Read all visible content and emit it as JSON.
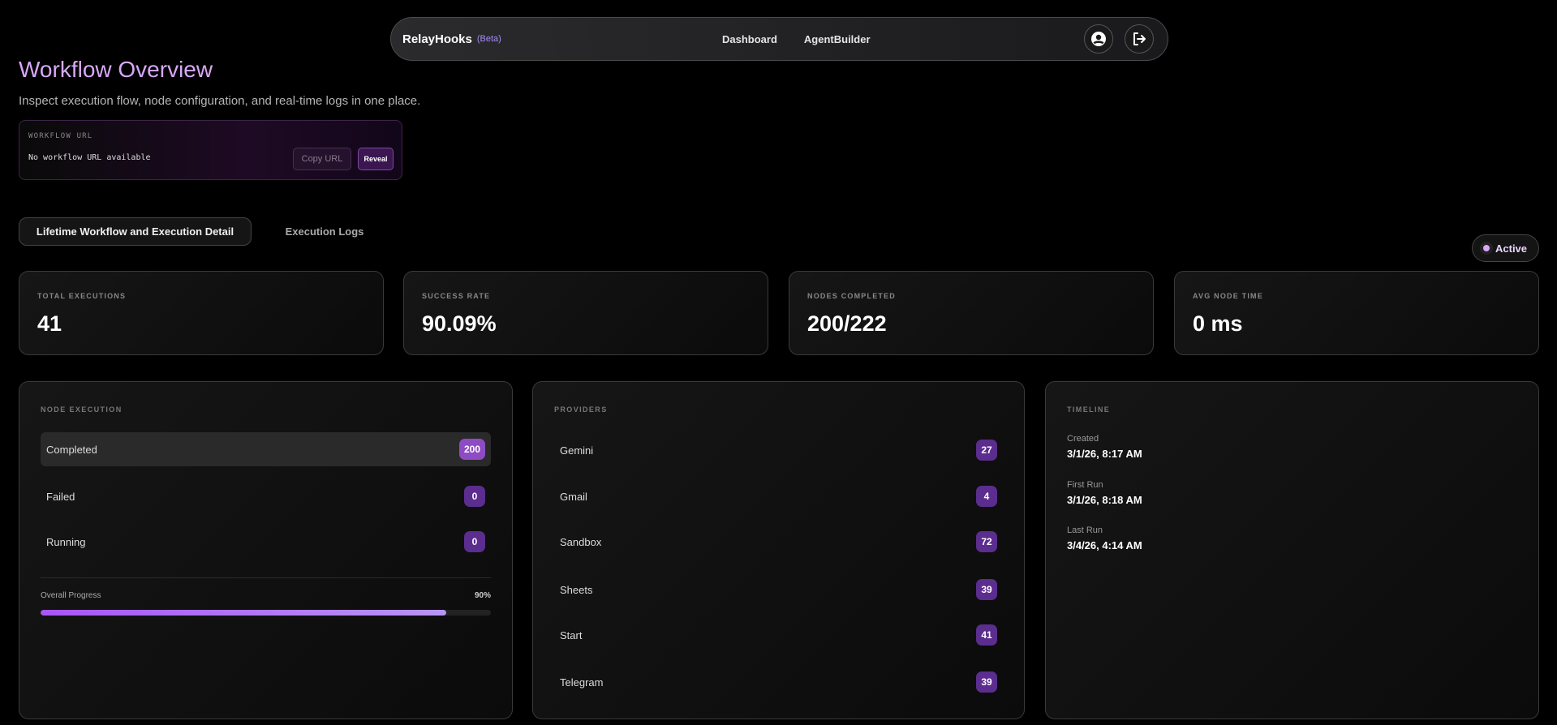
{
  "nav": {
    "brand": "RelayHooks",
    "beta": "(Beta)",
    "links": [
      "Dashboard",
      "AgentBuilder"
    ],
    "icons": [
      "user-circle-icon",
      "logout-icon"
    ]
  },
  "header": {
    "title": "Workflow Overview",
    "subtitle": "Inspect execution flow, node configuration, and real-time logs in one place."
  },
  "workflow_url": {
    "label": "WORKFLOW URL",
    "value": "No workflow URL available",
    "copy_label": "Copy URL",
    "reveal_label": "Reveal"
  },
  "tabs": [
    {
      "label": "Lifetime Workflow and Execution Detail",
      "active": true
    },
    {
      "label": "Execution Logs",
      "active": false
    }
  ],
  "status": {
    "label": "Active",
    "color": "#d8a8f8"
  },
  "stats": [
    {
      "label": "TOTAL EXECUTIONS",
      "value": "41"
    },
    {
      "label": "SUCCESS RATE",
      "value": "90.09%"
    },
    {
      "label": "NODES COMPLETED",
      "value": "200/222"
    },
    {
      "label": "AVG NODE TIME",
      "value": "0 ms"
    }
  ],
  "node_execution": {
    "title": "NODE EXECUTION",
    "rows": [
      {
        "label": "Completed",
        "value": "200"
      },
      {
        "label": "Failed",
        "value": "0"
      },
      {
        "label": "Running",
        "value": "0"
      }
    ],
    "progress_label": "Overall Progress",
    "progress_text": "90%",
    "progress": 90
  },
  "providers": {
    "title": "PROVIDERS",
    "rows": [
      {
        "label": "Gemini",
        "value": "27"
      },
      {
        "label": "Gmail",
        "value": "4"
      },
      {
        "label": "Sandbox",
        "value": "72"
      },
      {
        "label": "Sheets",
        "value": "39"
      },
      {
        "label": "Start",
        "value": "41"
      },
      {
        "label": "Telegram",
        "value": "39"
      }
    ]
  },
  "timeline": {
    "title": "TIMELINE",
    "items": [
      {
        "label": "Created",
        "value": "3/1/26, 8:17 AM"
      },
      {
        "label": "First Run",
        "value": "3/1/26, 8:18 AM"
      },
      {
        "label": "Last Run",
        "value": "3/4/26, 4:14 AM"
      }
    ]
  },
  "colors": {
    "accent": "#a855f7",
    "badge": "#5b2d8e",
    "title": "#d8a8f8"
  }
}
